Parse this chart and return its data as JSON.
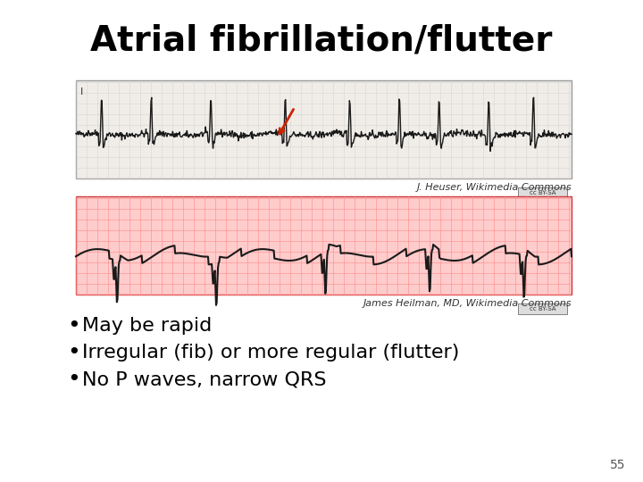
{
  "title": "Atrial fibrillation/flutter",
  "title_fontsize": 28,
  "title_fontweight": "bold",
  "bg_color": "#ffffff",
  "ecg1_credit": "J. Heuser, Wikimedia Commons",
  "ecg2_credit": "James Heilman, MD, Wikimedia Commons",
  "bullet_points": [
    "May be rapid",
    "Irregular (fib) or more regular (flutter)",
    "No P waves, narrow QRS"
  ],
  "bullet_fontsize": 16,
  "slide_number": "55",
  "ecg1_bg": "#f0ede8",
  "ecg2_bg": "#ffcccc",
  "ecg1_grid_color": "#cccccc",
  "ecg2_grid_color": "#ff8888",
  "ecg_line_color": "#1a1a1a",
  "credit_fontsize": 8,
  "credit_color": "#333333"
}
